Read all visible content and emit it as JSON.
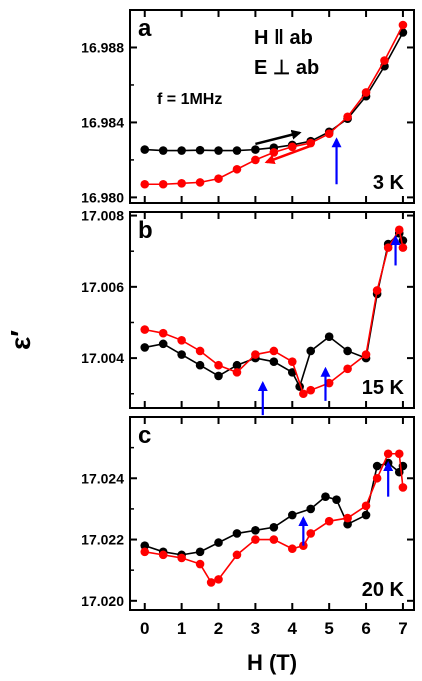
{
  "chart_data": {
    "type": "scatter",
    "xlabel": "H (T)",
    "ylabel": "ε′",
    "xlim": [
      -0.4,
      7.3
    ],
    "x_ticks": [
      0,
      1,
      2,
      3,
      4,
      5,
      6,
      7
    ],
    "x_tick_labels": [
      "0",
      "1",
      "2",
      "3",
      "4",
      "5",
      "6",
      "7"
    ],
    "colors": {
      "series_a": "#000000",
      "series_b": "#ff0000",
      "arrow": "#0000ff"
    },
    "panels": [
      {
        "id": "a",
        "label": "a",
        "temperature": "3 K",
        "annotations": [
          "H ‖ ab",
          "E ⊥ ab",
          "f = 1MHz"
        ],
        "ylim": [
          16.9797,
          16.99
        ],
        "y_ticks": [
          16.98,
          16.984,
          16.988
        ],
        "y_tick_labels": [
          "16.980",
          "16.984",
          "16.988"
        ],
        "black_arrow": {
          "from": [
            3.0,
            16.98285
          ],
          "to": [
            4.2,
            16.98345
          ]
        },
        "red_arrow": {
          "from": [
            4.5,
            16.98275
          ],
          "to": [
            3.3,
            16.98188
          ]
        },
        "blue_arrows": [
          {
            "x": 5.2,
            "y_from": 16.9807,
            "y_to": 16.9831
          }
        ],
        "series": [
          {
            "name": "black",
            "x": [
              0,
              0.5,
              1,
              1.5,
              2,
              2.5,
              3,
              3.5,
              4,
              4.5,
              5,
              5.5,
              6,
              6.5,
              7
            ],
            "y": [
              16.98255,
              16.9825,
              16.9825,
              16.98252,
              16.9825,
              16.9825,
              16.98255,
              16.98265,
              16.9828,
              16.983,
              16.9835,
              16.9842,
              16.9854,
              16.987,
              16.9888
            ]
          },
          {
            "name": "red",
            "x": [
              0,
              0.5,
              1,
              1.5,
              2,
              2.5,
              3,
              3.5,
              4,
              4.5,
              5,
              5.5,
              6,
              6.5,
              7
            ],
            "y": [
              16.9807,
              16.9807,
              16.98075,
              16.9808,
              16.981,
              16.9815,
              16.982,
              16.9824,
              16.9827,
              16.9829,
              16.9834,
              16.9843,
              16.9856,
              16.9873,
              16.9892
            ]
          }
        ]
      },
      {
        "id": "b",
        "label": "b",
        "temperature": "15 K",
        "ylim": [
          17.0026,
          17.0081
        ],
        "y_ticks": [
          17.004,
          17.006,
          17.008
        ],
        "y_tick_labels": [
          "17.004",
          "17.006",
          "17.008"
        ],
        "blue_arrows": [
          {
            "x": 3.2,
            "y_from": 17.0024,
            "y_to": 17.0033
          },
          {
            "x": 4.9,
            "y_from": 17.0028,
            "y_to": 17.0037
          },
          {
            "x": 6.8,
            "y_from": 17.0066,
            "y_to": 17.0074
          }
        ],
        "series": [
          {
            "name": "black",
            "x": [
              0,
              0.5,
              1,
              1.5,
              2,
              2.5,
              3,
              3.5,
              4,
              4.2,
              4.5,
              5,
              5.5,
              6,
              6.3,
              6.6,
              6.9,
              7
            ],
            "y": [
              17.0043,
              17.0044,
              17.0041,
              17.0038,
              17.0035,
              17.0038,
              17.004,
              17.0039,
              17.0036,
              17.0032,
              17.0042,
              17.0046,
              17.0042,
              17.004,
              17.0058,
              17.0072,
              17.0075,
              17.0073
            ]
          },
          {
            "name": "red",
            "x": [
              0,
              0.5,
              1,
              1.5,
              2,
              2.5,
              3,
              3.5,
              4,
              4.3,
              4.5,
              5,
              5.5,
              6,
              6.3,
              6.6,
              6.9,
              7
            ],
            "y": [
              17.0048,
              17.0047,
              17.0045,
              17.0042,
              17.0038,
              17.0036,
              17.0041,
              17.0042,
              17.0039,
              17.003,
              17.0031,
              17.0033,
              17.0037,
              17.0041,
              17.0059,
              17.0071,
              17.0076,
              17.0071
            ]
          }
        ]
      },
      {
        "id": "c",
        "label": "c",
        "temperature": "20 K",
        "ylim": [
          17.0197,
          17.026
        ],
        "y_ticks": [
          17.02,
          17.022,
          17.024
        ],
        "y_tick_labels": [
          "17.020",
          "17.022",
          "17.024"
        ],
        "blue_arrows": [
          {
            "x": 4.3,
            "y_from": 17.0218,
            "y_to": 17.0227
          },
          {
            "x": 6.6,
            "y_from": 17.0234,
            "y_to": 17.0245
          }
        ],
        "series": [
          {
            "name": "black",
            "x": [
              0,
              0.5,
              1,
              1.5,
              2,
              2.5,
              3,
              3.5,
              4,
              4.5,
              4.9,
              5.2,
              5.5,
              6,
              6.3,
              6.6,
              6.9,
              7
            ],
            "y": [
              17.0218,
              17.0216,
              17.0215,
              17.0216,
              17.0219,
              17.0222,
              17.0223,
              17.0224,
              17.0228,
              17.023,
              17.0234,
              17.0233,
              17.0225,
              17.0228,
              17.0244,
              17.0245,
              17.0242,
              17.0244
            ]
          },
          {
            "name": "red",
            "x": [
              0,
              0.5,
              1,
              1.5,
              1.8,
              2,
              2.5,
              3,
              3.5,
              4,
              4.3,
              4.5,
              5,
              5.5,
              6,
              6.3,
              6.6,
              6.9,
              7
            ],
            "y": [
              17.0216,
              17.0215,
              17.0214,
              17.0212,
              17.0206,
              17.0207,
              17.0215,
              17.022,
              17.022,
              17.0217,
              17.0218,
              17.0222,
              17.0226,
              17.0227,
              17.0231,
              17.024,
              17.0248,
              17.0248,
              17.0237
            ]
          }
        ]
      }
    ]
  }
}
